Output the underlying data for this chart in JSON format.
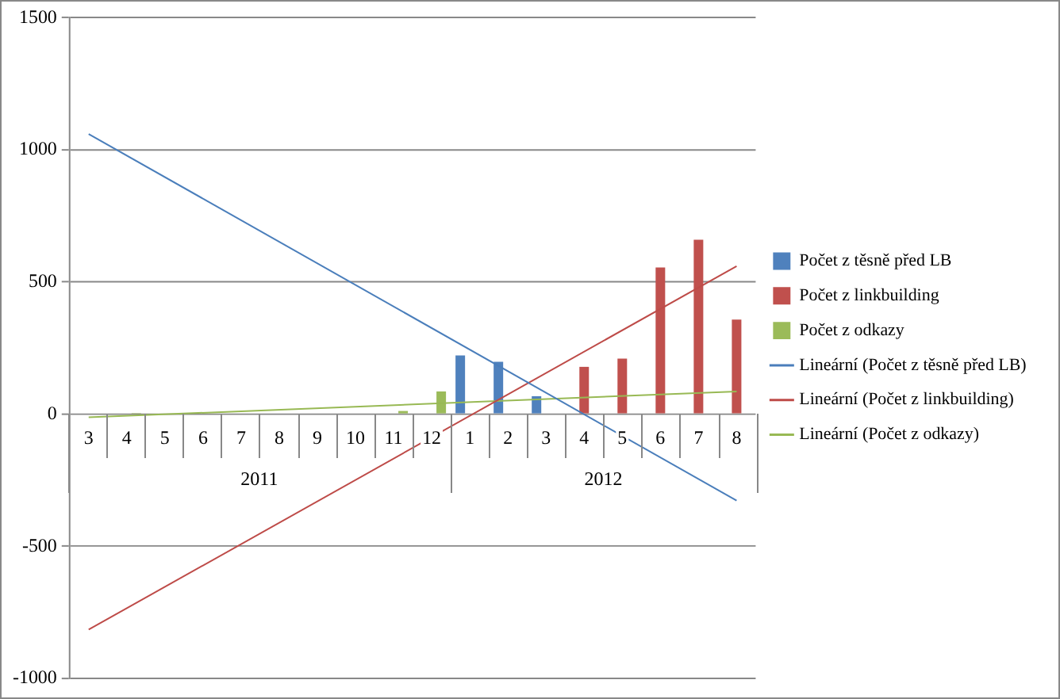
{
  "chart_data": {
    "type": "bar",
    "categories": [
      "3",
      "4",
      "5",
      "6",
      "7",
      "8",
      "9",
      "10",
      "11",
      "12",
      "1",
      "2",
      "3",
      "4",
      "5",
      "6",
      "7",
      "8"
    ],
    "annotations": [
      "2011",
      "2012"
    ],
    "ylim": [
      -1000,
      1500
    ],
    "yticks": [
      -1000,
      -500,
      0,
      500,
      1000,
      1500
    ],
    "grid": "y",
    "legend": "right",
    "series": [
      {
        "name": "Počet z těsně před LB",
        "color": "#4f81bd",
        "values": [
          null,
          null,
          null,
          null,
          null,
          null,
          null,
          null,
          null,
          null,
          222,
          198,
          68,
          null,
          null,
          null,
          null,
          null
        ]
      },
      {
        "name": "Počet z linkbuilding",
        "color": "#c0504d",
        "values": [
          null,
          null,
          null,
          null,
          null,
          null,
          null,
          null,
          null,
          null,
          null,
          null,
          null,
          179,
          210,
          555,
          660,
          358
        ]
      },
      {
        "name": "Počet z odkazy",
        "color": "#9bbb59",
        "values": [
          null,
          5,
          null,
          null,
          null,
          null,
          null,
          null,
          12,
          86,
          null,
          null,
          null,
          null,
          null,
          null,
          null,
          null
        ]
      },
      {
        "name": "Lineární (Počet z těsně před LB)",
        "type": "line",
        "color": "#4a7ebb",
        "values": [
          1060,
          null,
          null,
          null,
          null,
          null,
          null,
          null,
          null,
          null,
          null,
          null,
          null,
          null,
          null,
          null,
          null,
          -327
        ]
      },
      {
        "name": "Lineární (Počet z linkbuilding)",
        "type": "line",
        "color": "#be4b48",
        "values": [
          -815,
          null,
          null,
          null,
          null,
          null,
          null,
          null,
          null,
          null,
          null,
          null,
          null,
          null,
          null,
          null,
          null,
          560
        ]
      },
      {
        "name": "Lineární (Počet z odkazy)",
        "type": "line",
        "color": "#98b954",
        "values": [
          -12,
          null,
          null,
          null,
          null,
          null,
          null,
          null,
          null,
          null,
          null,
          null,
          null,
          null,
          null,
          null,
          null,
          86
        ]
      }
    ]
  }
}
